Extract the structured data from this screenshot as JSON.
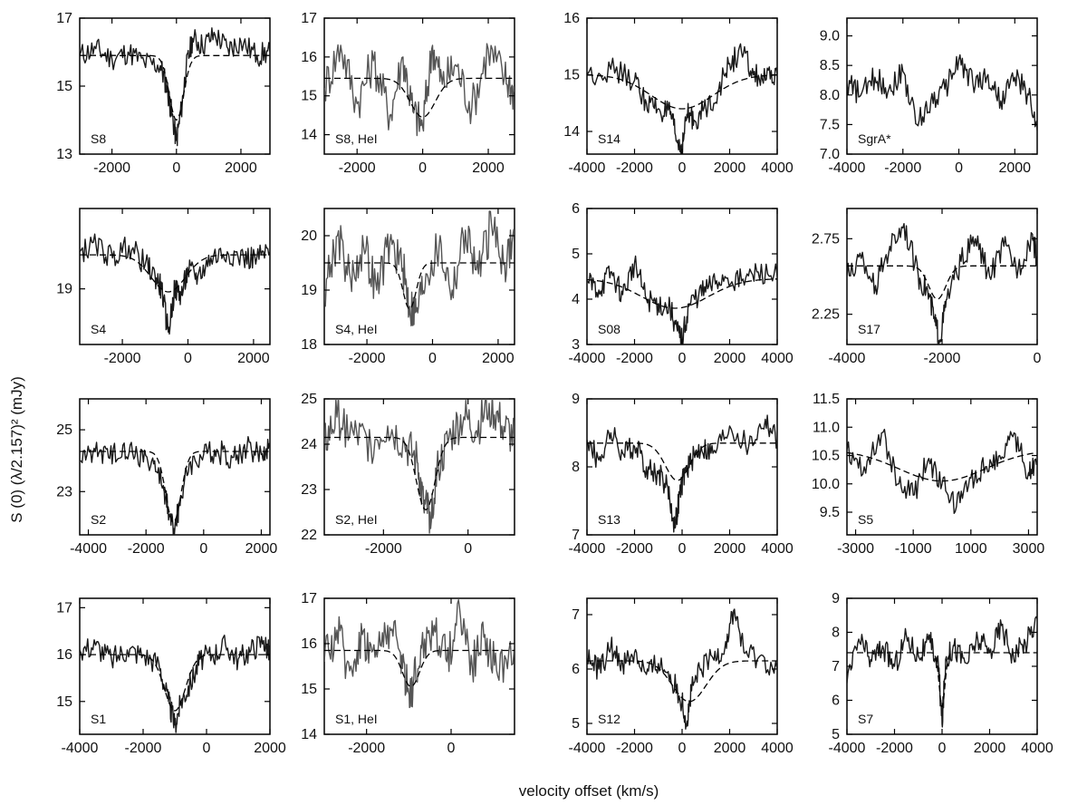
{
  "figure": {
    "ylabel": "S (0) (λ/2.157)² (mJy)",
    "xlabel": "velocity offset (km/s)"
  },
  "colors": {
    "frame": "#000000",
    "spectrum_dark": "#1a1a1a",
    "spectrum_grey": "#555555",
    "model": "#000000"
  },
  "chart_data": [
    {
      "label": "S8",
      "type": "line",
      "xlim": [
        -3000,
        2900
      ],
      "xticks": [
        -2000,
        0,
        2000
      ],
      "ylim": [
        13,
        17
      ],
      "yticks": [
        13,
        15,
        17
      ],
      "series": [
        {
          "x": [
            -3000,
            -2500,
            -2000,
            -1500,
            -1000,
            -500,
            -300,
            -150,
            0,
            150,
            300,
            500,
            800,
            1200,
            1600,
            2000,
            2500,
            2900
          ],
          "y": [
            15.9,
            16.1,
            15.8,
            16.0,
            15.7,
            15.6,
            15.0,
            14.2,
            13.4,
            14.3,
            15.5,
            16.4,
            16.2,
            16.5,
            16.1,
            16.3,
            15.9,
            16.0
          ]
        }
      ],
      "model": {
        "baseline": 15.9,
        "depth": 1.9,
        "center": 0,
        "width": 220
      }
    },
    {
      "label": "S8, HeI",
      "type": "line",
      "xlim": [
        -3000,
        2800
      ],
      "xticks": [
        -2000,
        0,
        2000
      ],
      "ylim": [
        13.5,
        17
      ],
      "yticks": [
        14,
        15,
        16,
        17
      ],
      "series": [
        {
          "x": [
            -3000,
            -2500,
            -2000,
            -1500,
            -1000,
            -600,
            -300,
            0,
            300,
            600,
            1000,
            1500,
            2000,
            2500,
            2800
          ],
          "y": [
            15.2,
            16.3,
            14.8,
            15.9,
            14.5,
            16.0,
            14.6,
            14.2,
            16.3,
            15.3,
            15.8,
            14.7,
            16.2,
            15.5,
            15.1
          ]
        }
      ],
      "model": {
        "baseline": 15.45,
        "depth": 1.0,
        "center": 0,
        "width": 380
      }
    },
    {
      "label": "S14",
      "type": "line",
      "xlim": [
        -4000,
        4000
      ],
      "xticks": [
        -4000,
        -2000,
        0,
        2000,
        4000
      ],
      "ylim": [
        13.6,
        16
      ],
      "yticks": [
        14,
        15,
        16
      ],
      "series": [
        {
          "x": [
            -4000,
            -3000,
            -2000,
            -1500,
            -1000,
            -500,
            -200,
            0,
            200,
            500,
            1000,
            1500,
            2000,
            2500,
            3000,
            3500,
            4000
          ],
          "y": [
            15.0,
            15.1,
            14.9,
            14.5,
            14.4,
            14.3,
            13.8,
            13.7,
            14.3,
            14.2,
            14.4,
            14.7,
            15.2,
            15.4,
            15.0,
            14.9,
            15.0
          ]
        }
      ],
      "model": {
        "baseline": 15.0,
        "depth": 0.6,
        "center": 0,
        "width": 1300
      }
    },
    {
      "label": "SgrA*",
      "type": "line",
      "xlim": [
        -4000,
        2800
      ],
      "xticks": [
        -4000,
        -2000,
        0,
        2000
      ],
      "ylim": [
        7.0,
        9.3
      ],
      "yticks": [
        7.0,
        7.5,
        8.0,
        8.5,
        9.0
      ],
      "series": [
        {
          "x": [
            -4000,
            -3500,
            -3000,
            -2500,
            -2000,
            -1500,
            -1000,
            -500,
            0,
            500,
            1000,
            1500,
            2000,
            2500,
            2800
          ],
          "y": [
            8.2,
            8.0,
            8.3,
            8.1,
            8.4,
            7.5,
            7.9,
            8.1,
            8.6,
            8.2,
            8.3,
            7.9,
            8.3,
            8.0,
            7.4
          ]
        }
      ],
      "model": null
    },
    {
      "label": "S4",
      "type": "line",
      "xlim": [
        -3300,
        2500
      ],
      "xticks": [
        -2000,
        0,
        2000
      ],
      "ylim": [
        18.1,
        20.3
      ],
      "yticks": [
        19
      ],
      "series": [
        {
          "x": [
            -3300,
            -2800,
            -2300,
            -1800,
            -1300,
            -1000,
            -800,
            -600,
            -400,
            -200,
            0,
            300,
            700,
            1200,
            1700,
            2100,
            2500
          ],
          "y": [
            19.6,
            19.7,
            19.5,
            19.7,
            19.4,
            19.2,
            19.0,
            18.3,
            19.0,
            18.9,
            19.3,
            19.2,
            19.5,
            19.6,
            19.5,
            19.5,
            19.6
          ]
        }
      ],
      "model": {
        "baseline": 19.55,
        "depth": 0.6,
        "center": -600,
        "width": 520
      }
    },
    {
      "label": "S4, HeI",
      "type": "line",
      "xlim": [
        -3300,
        2500
      ],
      "xticks": [
        -2000,
        0,
        2000
      ],
      "ylim": [
        18,
        20.5
      ],
      "yticks": [
        18,
        19,
        20
      ],
      "series": [
        {
          "x": [
            -3300,
            -2900,
            -2500,
            -2100,
            -1700,
            -1300,
            -900,
            -700,
            -500,
            -200,
            200,
            600,
            1000,
            1400,
            1800,
            2200,
            2500
          ],
          "y": [
            19.0,
            20.0,
            19.2,
            19.8,
            19.0,
            19.9,
            19.4,
            18.7,
            18.6,
            19.3,
            19.8,
            19.0,
            20.1,
            19.3,
            20.2,
            19.5,
            20.0
          ]
        }
      ],
      "model": {
        "baseline": 19.5,
        "depth": 0.85,
        "center": -700,
        "width": 200
      }
    },
    {
      "label": "S08",
      "type": "line",
      "xlim": [
        -4000,
        4000
      ],
      "xticks": [
        -4000,
        -2000,
        0,
        2000,
        4000
      ],
      "ylim": [
        3,
        6
      ],
      "yticks": [
        3,
        4,
        5,
        6
      ],
      "series": [
        {
          "x": [
            -4000,
            -3500,
            -3000,
            -2500,
            -2000,
            -1500,
            -1000,
            -500,
            -200,
            0,
            300,
            700,
            1200,
            1800,
            2500,
            3200,
            4000
          ],
          "y": [
            4.4,
            4.2,
            4.6,
            4.1,
            4.8,
            4.0,
            3.9,
            3.8,
            3.3,
            3.1,
            3.9,
            4.1,
            4.3,
            4.5,
            4.4,
            4.6,
            4.5
          ]
        }
      ],
      "model": {
        "baseline": 4.45,
        "depth": 0.65,
        "center": -300,
        "width": 1400
      }
    },
    {
      "label": "S17",
      "type": "line",
      "xlim": [
        -4000,
        0
      ],
      "xticks": [
        -4000,
        -2000,
        0
      ],
      "ylim": [
        2.05,
        2.95
      ],
      "yticks": [
        2.25,
        2.75
      ],
      "series": [
        {
          "x": [
            -4000,
            -3700,
            -3400,
            -3100,
            -2800,
            -2500,
            -2300,
            -2150,
            -2050,
            -1900,
            -1600,
            -1300,
            -1000,
            -700,
            -400,
            -100,
            0
          ],
          "y": [
            2.5,
            2.62,
            2.44,
            2.7,
            2.85,
            2.5,
            2.4,
            2.2,
            2.08,
            2.35,
            2.6,
            2.75,
            2.5,
            2.7,
            2.55,
            2.78,
            2.6
          ]
        }
      ],
      "model": {
        "baseline": 2.57,
        "depth": 0.22,
        "center": -2100,
        "width": 180
      }
    },
    {
      "label": "S2",
      "type": "line",
      "xlim": [
        -4300,
        2300
      ],
      "xticks": [
        -4000,
        -2000,
        0,
        2000
      ],
      "ylim": [
        21.6,
        26
      ],
      "yticks": [
        23,
        25
      ],
      "series": [
        {
          "x": [
            -4300,
            -3800,
            -3300,
            -2800,
            -2300,
            -1800,
            -1400,
            -1200,
            -1000,
            -800,
            -500,
            0,
            500,
            1000,
            1500,
            2000,
            2300
          ],
          "y": [
            24.0,
            24.4,
            24.1,
            24.5,
            24.2,
            24.0,
            23.2,
            22.2,
            21.8,
            22.8,
            23.9,
            24.2,
            24.3,
            24.1,
            24.4,
            24.2,
            24.5
          ]
        }
      ],
      "model": {
        "baseline": 24.3,
        "depth": 2.3,
        "center": -1050,
        "width": 260
      }
    },
    {
      "label": "S2, HeI",
      "type": "line",
      "xlim": [
        -3400,
        1100
      ],
      "xticks": [
        -2000,
        0
      ],
      "ylim": [
        22,
        25
      ],
      "yticks": [
        22,
        23,
        24,
        25
      ],
      "series": [
        {
          "x": [
            -3400,
            -3100,
            -2700,
            -2300,
            -1900,
            -1500,
            -1200,
            -1050,
            -900,
            -700,
            -400,
            -100,
            200,
            500,
            800,
            1100
          ],
          "y": [
            24.0,
            24.6,
            24.2,
            24.0,
            24.4,
            24.0,
            23.6,
            22.6,
            22.5,
            23.5,
            24.2,
            24.6,
            24.3,
            24.9,
            24.4,
            24.1
          ]
        }
      ],
      "model": {
        "baseline": 24.15,
        "depth": 1.6,
        "center": -1000,
        "width": 220
      }
    },
    {
      "label": "S13",
      "type": "line",
      "xlim": [
        -4000,
        4000
      ],
      "xticks": [
        -4000,
        -2000,
        0,
        2000,
        4000
      ],
      "ylim": [
        7,
        9
      ],
      "yticks": [
        7,
        8,
        9
      ],
      "series": [
        {
          "x": [
            -4000,
            -3500,
            -3000,
            -2500,
            -2000,
            -1500,
            -1000,
            -600,
            -300,
            -100,
            100,
            400,
            800,
            1300,
            2000,
            2800,
            3500,
            4000
          ],
          "y": [
            8.4,
            8.1,
            8.5,
            8.2,
            8.3,
            8.0,
            7.9,
            7.7,
            7.1,
            7.6,
            7.9,
            8.1,
            8.3,
            8.2,
            8.6,
            8.3,
            8.7,
            8.4
          ]
        }
      ],
      "model": {
        "baseline": 8.35,
        "depth": 0.55,
        "center": -200,
        "width": 500
      }
    },
    {
      "label": "S5",
      "type": "line",
      "xlim": [
        -3300,
        3300
      ],
      "xticks": [
        -3000,
        -1000,
        1000,
        3000
      ],
      "ylim": [
        9.1,
        11.5
      ],
      "yticks": [
        9.5,
        10.0,
        10.5,
        11.0,
        11.5
      ],
      "series": [
        {
          "x": [
            -3300,
            -2700,
            -2100,
            -1500,
            -1000,
            -500,
            0,
            500,
            1000,
            1500,
            2000,
            2500,
            3000,
            3300
          ],
          "y": [
            10.6,
            10.3,
            10.9,
            10.0,
            9.8,
            10.4,
            10.0,
            9.6,
            10.1,
            10.3,
            10.5,
            10.9,
            10.2,
            10.4
          ]
        }
      ],
      "model": {
        "baseline": 10.6,
        "depth": 0.55,
        "center": 0,
        "width": 1500
      }
    },
    {
      "label": "S1",
      "type": "line",
      "xlim": [
        -4000,
        2000
      ],
      "xticks": [
        -4000,
        -2000,
        0,
        2000
      ],
      "ylim": [
        14.3,
        17.2
      ],
      "yticks": [
        15,
        16,
        17
      ],
      "series": [
        {
          "x": [
            -4000,
            -3500,
            -3000,
            -2500,
            -2000,
            -1500,
            -1200,
            -1000,
            -800,
            -500,
            -200,
            200,
            600,
            1000,
            1400,
            1800,
            2000
          ],
          "y": [
            16.1,
            16.2,
            15.9,
            16.1,
            16.0,
            15.8,
            15.0,
            14.5,
            15.0,
            15.4,
            15.9,
            16.0,
            16.2,
            15.9,
            16.1,
            16.3,
            16.0
          ]
        }
      ],
      "model": {
        "baseline": 16.0,
        "depth": 1.2,
        "center": -1000,
        "width": 330
      }
    },
    {
      "label": "S1, HeI",
      "type": "line",
      "xlim": [
        -3000,
        1500
      ],
      "xticks": [
        -2000,
        0
      ],
      "ylim": [
        14,
        17
      ],
      "yticks": [
        14,
        15,
        16,
        17
      ],
      "series": [
        {
          "x": [
            -3000,
            -2700,
            -2400,
            -2100,
            -1800,
            -1500,
            -1200,
            -1000,
            -900,
            -700,
            -400,
            -100,
            200,
            500,
            800,
            1100,
            1500
          ],
          "y": [
            15.6,
            16.3,
            15.4,
            16.2,
            15.7,
            16.4,
            15.8,
            14.9,
            15.1,
            15.9,
            16.4,
            15.6,
            16.8,
            15.5,
            16.2,
            15.3,
            16.0
          ]
        }
      ],
      "model": {
        "baseline": 15.85,
        "depth": 0.8,
        "center": -950,
        "width": 200
      }
    },
    {
      "label": "S12",
      "type": "line",
      "xlim": [
        -4000,
        4000
      ],
      "xticks": [
        -4000,
        -2000,
        0,
        2000,
        4000
      ],
      "ylim": [
        4.8,
        7.3
      ],
      "yticks": [
        5,
        6,
        7
      ],
      "series": [
        {
          "x": [
            -4000,
            -3500,
            -3000,
            -2500,
            -2000,
            -1500,
            -1000,
            -500,
            0,
            200,
            400,
            800,
            1300,
            1800,
            2200,
            2600,
            3200,
            4000
          ],
          "y": [
            6.2,
            6.0,
            6.4,
            6.1,
            6.3,
            5.9,
            6.1,
            5.9,
            5.4,
            5.0,
            5.6,
            6.0,
            6.2,
            6.4,
            7.1,
            6.3,
            6.2,
            6.0
          ]
        }
      ],
      "model": {
        "baseline": 6.15,
        "depth": 0.75,
        "center": 300,
        "width": 700
      }
    },
    {
      "label": "S7",
      "type": "line",
      "xlim": [
        -4000,
        4000
      ],
      "xticks": [
        -4000,
        -2000,
        0,
        2000,
        4000
      ],
      "ylim": [
        5,
        9
      ],
      "yticks": [
        5,
        6,
        7,
        8,
        9
      ],
      "series": [
        {
          "x": [
            -4000,
            -3500,
            -3000,
            -2500,
            -2000,
            -1500,
            -1000,
            -500,
            -150,
            0,
            150,
            500,
            1000,
            1500,
            2000,
            2500,
            3000,
            3500,
            4000
          ],
          "y": [
            6.5,
            7.8,
            7.2,
            7.6,
            7.0,
            7.9,
            7.3,
            7.7,
            7.0,
            5.3,
            7.2,
            7.6,
            7.1,
            7.8,
            7.4,
            8.2,
            7.3,
            7.7,
            8.4
          ]
        }
      ],
      "model": {
        "baseline": 7.4,
        "depth": 1.6,
        "center": 0,
        "width": 120
      }
    }
  ]
}
